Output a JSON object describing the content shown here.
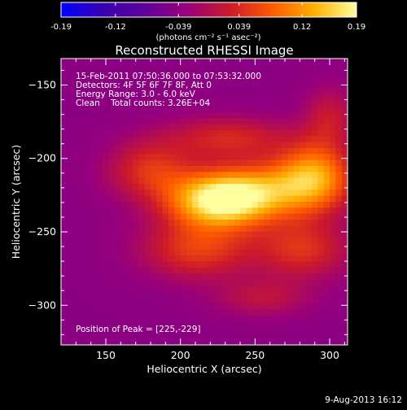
{
  "colorbar": {
    "ticks": [
      "-0.19",
      "-0.12",
      "-0.039",
      "0.039",
      "0.12",
      "0.19"
    ],
    "tick_values": [
      -0.19,
      -0.12,
      -0.039,
      0.039,
      0.12,
      0.19
    ],
    "range": [
      -0.19,
      0.19
    ],
    "unit_label": "(photons cm⁻² s⁻¹ asec⁻²)",
    "colors": [
      "#0000ff",
      "#3a00b0",
      "#60009a",
      "#9a007a",
      "#cc1a2a",
      "#ff5a00",
      "#ffb000",
      "#ffffa0"
    ]
  },
  "chart_data": {
    "type": "heatmap",
    "title": "Reconstructed RHESSI Image",
    "xlabel": "Heliocentric X (arcsec)",
    "ylabel": "Heliocentric Y (arcsec)",
    "xlim": [
      120,
      312
    ],
    "ylim": [
      -327,
      -132
    ],
    "xticks": [
      150,
      200,
      250,
      300
    ],
    "yticks": [
      -150,
      -200,
      -250,
      -300
    ],
    "xtick_labels": [
      "150",
      "200",
      "250",
      "300"
    ],
    "ytick_labels": [
      "−150",
      "−200",
      "−250",
      "−300"
    ],
    "annotations": [
      "15-Feb-2011 07:50:36.000 to 07:53:32.000",
      "Detectors: 4F 5F 6F 7F 8F, Att 0",
      "Energy Range: 3.0 - 6.0 keV",
      "Clean    Total counts: 3.26E+04"
    ],
    "peak_label": "Position of Peak = [225,-229]",
    "peak": [
      225,
      -229
    ],
    "peak_value": 0.19,
    "background_level": -0.04,
    "sources": [
      {
        "x": 225,
        "y": -229,
        "peak": 0.2,
        "sx": 24,
        "sy": 13
      },
      {
        "x": 255,
        "y": -222,
        "peak": 0.12,
        "sx": 28,
        "sy": 14
      },
      {
        "x": 290,
        "y": -212,
        "peak": 0.15,
        "sx": 18,
        "sy": 16
      },
      {
        "x": 180,
        "y": -208,
        "peak": 0.085,
        "sx": 20,
        "sy": 14
      },
      {
        "x": 212,
        "y": -262,
        "peak": 0.095,
        "sx": 26,
        "sy": 14
      },
      {
        "x": 282,
        "y": -262,
        "peak": 0.085,
        "sx": 22,
        "sy": 14
      },
      {
        "x": 232,
        "y": -186,
        "peak": 0.075,
        "sx": 30,
        "sy": 10
      },
      {
        "x": 300,
        "y": -172,
        "peak": 0.06,
        "sx": 12,
        "sy": 14
      },
      {
        "x": 255,
        "y": -295,
        "peak": 0.05,
        "sx": 22,
        "sy": 9
      }
    ]
  },
  "timestamp": "9-Aug-2013 16:12"
}
